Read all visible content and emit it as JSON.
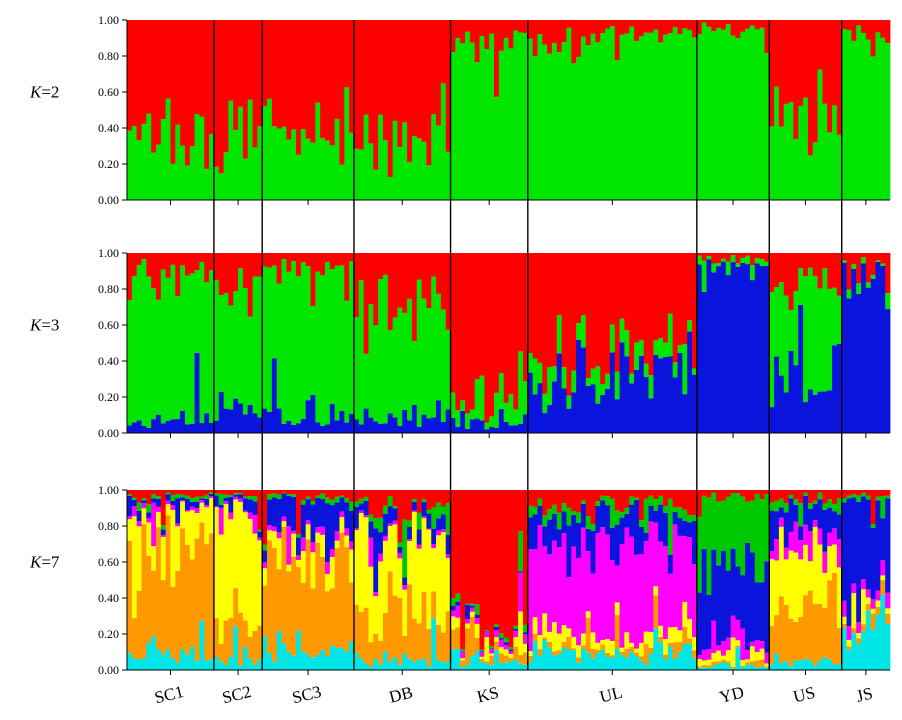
{
  "chart_data": {
    "type": "bar",
    "subtype": "stacked-structure-plot",
    "ylim": [
      0,
      1
    ],
    "yticks": [
      "0.00",
      "0.20",
      "0.40",
      "0.60",
      "0.80",
      "1.00"
    ],
    "groups": [
      {
        "name": "SC1",
        "n": 18
      },
      {
        "name": "SC2",
        "n": 10
      },
      {
        "name": "SC3",
        "n": 19
      },
      {
        "name": "DB",
        "n": 20
      },
      {
        "name": "KS",
        "n": 16
      },
      {
        "name": "UL",
        "n": 35
      },
      {
        "name": "YD",
        "n": 15
      },
      {
        "name": "US",
        "n": 15
      },
      {
        "name": "JS",
        "n": 10
      }
    ],
    "panels": [
      {
        "k_prefix": "K",
        "k_suffix": "=2",
        "cluster_colors": [
          "#00e600",
          "#ff0000"
        ],
        "group_means": [
          [
            0.3,
            0.7
          ],
          [
            0.35,
            0.65
          ],
          [
            0.4,
            0.6
          ],
          [
            0.35,
            0.65
          ],
          [
            0.88,
            0.12
          ],
          [
            0.9,
            0.1
          ],
          [
            0.95,
            0.05
          ],
          [
            0.45,
            0.55
          ],
          [
            0.93,
            0.07
          ]
        ]
      },
      {
        "k_prefix": "K",
        "k_suffix": "=3",
        "cluster_colors": [
          "#0a14dc",
          "#00e600",
          "#ff0000"
        ],
        "group_means": [
          [
            0.06,
            0.82,
            0.12
          ],
          [
            0.12,
            0.68,
            0.2
          ],
          [
            0.09,
            0.8,
            0.11
          ],
          [
            0.1,
            0.6,
            0.3
          ],
          [
            0.06,
            0.1,
            0.84
          ],
          [
            0.3,
            0.12,
            0.58
          ],
          [
            0.92,
            0.04,
            0.04
          ],
          [
            0.4,
            0.45,
            0.15
          ],
          [
            0.9,
            0.03,
            0.07
          ]
        ]
      },
      {
        "k_prefix": "K",
        "k_suffix": "=7",
        "cluster_colors": [
          "#00e5e5",
          "#ff9900",
          "#ffff00",
          "#ff00ff",
          "#0a14dc",
          "#00c800",
          "#ff0000"
        ],
        "group_means": [
          [
            0.1,
            0.6,
            0.2,
            0.02,
            0.03,
            0.02,
            0.03
          ],
          [
            0.08,
            0.2,
            0.6,
            0.02,
            0.05,
            0.02,
            0.03
          ],
          [
            0.12,
            0.55,
            0.1,
            0.03,
            0.15,
            0.02,
            0.03
          ],
          [
            0.06,
            0.25,
            0.45,
            0.02,
            0.08,
            0.04,
            0.1
          ],
          [
            0.05,
            0.04,
            0.03,
            0.03,
            0.01,
            0.02,
            0.82
          ],
          [
            0.1,
            0.03,
            0.08,
            0.5,
            0.15,
            0.05,
            0.09
          ],
          [
            0.02,
            0.02,
            0.04,
            0.05,
            0.4,
            0.43,
            0.04
          ],
          [
            0.05,
            0.35,
            0.25,
            0.1,
            0.15,
            0.05,
            0.05
          ],
          [
            0.25,
            0.05,
            0.03,
            0.07,
            0.55,
            0.02,
            0.03
          ]
        ]
      }
    ]
  }
}
